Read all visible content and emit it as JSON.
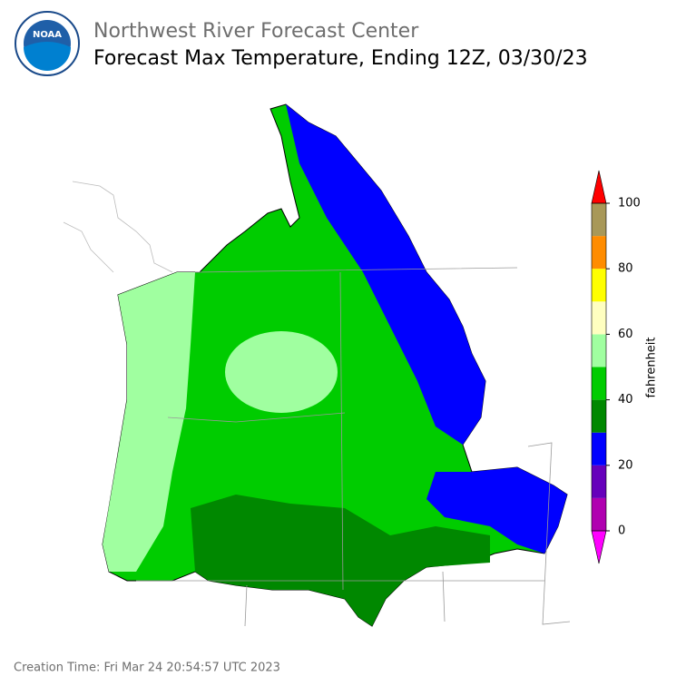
{
  "header": {
    "organization": "Northwest River Forecast Center",
    "title": "Forecast Max Temperature, Ending 12Z, 03/30/23",
    "logo_text": "NOAA"
  },
  "colorbar": {
    "label": "fahrenheit",
    "levels": [
      0,
      10,
      20,
      30,
      40,
      50,
      60,
      70,
      80,
      90,
      100
    ],
    "ticks": [
      0,
      20,
      40,
      60,
      80,
      100
    ],
    "under_color": "#ff00ff",
    "colors": [
      "#b000b0",
      "#6600bb",
      "#0000ff",
      "#008800",
      "#00cc00",
      "#a0ffa0",
      "#ffffc0",
      "#ffff00",
      "#ff8c00",
      "#a89858"
    ],
    "over_color": "#ff0000"
  },
  "footer": {
    "creation_time": "Creation Time: Fri Mar 24 20:54:57 UTC 2023"
  }
}
